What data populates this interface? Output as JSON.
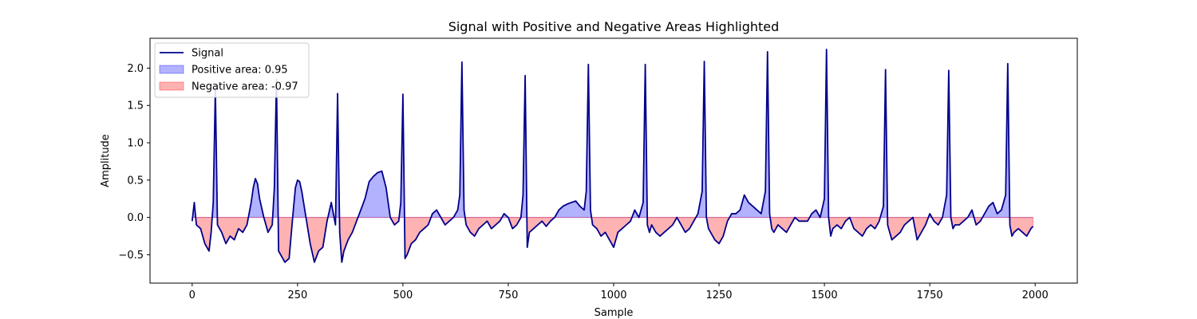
{
  "chart_data": {
    "type": "area",
    "title": "Signal with Positive and Negative Areas Highlighted",
    "xlabel": "Sample",
    "ylabel": "Amplitude",
    "xlim": [
      -100,
      2100
    ],
    "ylim": [
      -0.88,
      2.4
    ],
    "xticks": [
      0,
      250,
      500,
      750,
      1000,
      1250,
      1500,
      1750,
      2000
    ],
    "yticks": [
      -0.5,
      0.0,
      0.5,
      1.0,
      1.5,
      2.0
    ],
    "ytick_labels": [
      "−0.5",
      "0.0",
      "0.5",
      "1.0",
      "1.5",
      "2.0"
    ],
    "grid": false,
    "legend_position": "top-left",
    "series": [
      {
        "name": "Signal",
        "kind": "line",
        "color": "#00008B",
        "x": [
          0,
          5,
          10,
          20,
          30,
          40,
          45,
          50,
          55,
          60,
          70,
          80,
          90,
          100,
          110,
          120,
          130,
          140,
          145,
          150,
          155,
          160,
          170,
          180,
          190,
          195,
          200,
          205,
          210,
          220,
          230,
          240,
          245,
          250,
          255,
          260,
          270,
          280,
          290,
          300,
          310,
          320,
          330,
          340,
          345,
          350,
          355,
          360,
          370,
          380,
          390,
          400,
          410,
          420,
          430,
          440,
          450,
          460,
          470,
          480,
          490,
          495,
          500,
          505,
          510,
          520,
          530,
          540,
          550,
          560,
          570,
          580,
          590,
          600,
          610,
          620,
          630,
          635,
          640,
          645,
          650,
          660,
          670,
          680,
          690,
          700,
          710,
          720,
          730,
          740,
          750,
          760,
          770,
          780,
          785,
          790,
          795,
          800,
          810,
          820,
          830,
          840,
          850,
          860,
          870,
          880,
          890,
          900,
          910,
          920,
          930,
          935,
          940,
          945,
          950,
          960,
          970,
          980,
          990,
          1000,
          1010,
          1020,
          1030,
          1040,
          1050,
          1060,
          1070,
          1075,
          1080,
          1085,
          1090,
          1100,
          1110,
          1120,
          1130,
          1140,
          1150,
          1160,
          1170,
          1180,
          1190,
          1200,
          1210,
          1215,
          1220,
          1225,
          1230,
          1240,
          1250,
          1260,
          1270,
          1280,
          1290,
          1300,
          1310,
          1320,
          1330,
          1340,
          1350,
          1360,
          1365,
          1370,
          1375,
          1380,
          1390,
          1400,
          1410,
          1420,
          1430,
          1440,
          1450,
          1460,
          1470,
          1480,
          1490,
          1500,
          1505,
          1510,
          1515,
          1520,
          1530,
          1540,
          1550,
          1560,
          1570,
          1580,
          1590,
          1600,
          1610,
          1620,
          1630,
          1640,
          1645,
          1650,
          1655,
          1660,
          1670,
          1680,
          1690,
          1700,
          1710,
          1720,
          1730,
          1740,
          1750,
          1760,
          1770,
          1780,
          1790,
          1795,
          1800,
          1805,
          1810,
          1820,
          1830,
          1840,
          1850,
          1860,
          1870,
          1880,
          1890,
          1900,
          1910,
          1920,
          1930,
          1935,
          1940,
          1945,
          1950,
          1960,
          1970,
          1980,
          1990,
          1995
        ],
        "y": [
          -0.05,
          0.2,
          -0.1,
          -0.15,
          -0.35,
          -0.45,
          -0.2,
          0.2,
          1.72,
          -0.1,
          -0.2,
          -0.35,
          -0.25,
          -0.3,
          -0.15,
          -0.2,
          -0.1,
          0.2,
          0.4,
          0.52,
          0.45,
          0.25,
          0.0,
          -0.2,
          -0.1,
          0.4,
          1.85,
          -0.45,
          -0.5,
          -0.6,
          -0.55,
          0.1,
          0.4,
          0.5,
          0.48,
          0.35,
          0.0,
          -0.35,
          -0.6,
          -0.45,
          -0.4,
          -0.05,
          0.2,
          -0.1,
          1.66,
          -0.2,
          -0.6,
          -0.45,
          -0.3,
          -0.2,
          -0.05,
          0.1,
          0.25,
          0.48,
          0.55,
          0.6,
          0.62,
          0.4,
          0.0,
          -0.1,
          -0.05,
          0.2,
          1.65,
          -0.55,
          -0.5,
          -0.35,
          -0.3,
          -0.2,
          -0.15,
          -0.1,
          0.05,
          0.1,
          0.0,
          -0.1,
          -0.05,
          0.0,
          0.1,
          0.3,
          2.08,
          0.1,
          -0.1,
          -0.2,
          -0.25,
          -0.15,
          -0.1,
          -0.05,
          -0.15,
          -0.1,
          -0.05,
          0.05,
          0.0,
          -0.15,
          -0.1,
          0.0,
          0.3,
          1.9,
          -0.4,
          -0.2,
          -0.15,
          -0.1,
          -0.05,
          -0.12,
          -0.05,
          0.0,
          0.1,
          0.15,
          0.18,
          0.2,
          0.22,
          0.15,
          0.1,
          0.35,
          2.05,
          0.1,
          -0.1,
          -0.15,
          -0.25,
          -0.2,
          -0.3,
          -0.4,
          -0.2,
          -0.15,
          -0.1,
          -0.05,
          0.1,
          0.0,
          0.2,
          2.05,
          -0.1,
          -0.2,
          -0.1,
          -0.2,
          -0.25,
          -0.2,
          -0.15,
          -0.1,
          0.0,
          -0.1,
          -0.2,
          -0.15,
          -0.05,
          0.05,
          0.35,
          2.09,
          0.0,
          -0.15,
          -0.2,
          -0.3,
          -0.35,
          -0.25,
          -0.05,
          0.05,
          0.05,
          0.1,
          0.3,
          0.2,
          0.15,
          0.1,
          0.05,
          0.35,
          2.22,
          0.05,
          -0.15,
          -0.2,
          -0.1,
          -0.15,
          -0.2,
          -0.1,
          0.0,
          -0.05,
          -0.05,
          -0.05,
          0.05,
          0.1,
          0.0,
          0.25,
          2.25,
          0.0,
          -0.25,
          -0.15,
          -0.1,
          -0.15,
          -0.05,
          0.0,
          -0.15,
          -0.2,
          -0.25,
          -0.15,
          -0.1,
          -0.15,
          -0.05,
          0.15,
          1.98,
          -0.1,
          -0.2,
          -0.3,
          -0.25,
          -0.2,
          -0.1,
          -0.05,
          0.0,
          -0.3,
          -0.2,
          -0.1,
          0.05,
          -0.05,
          -0.1,
          0.0,
          0.3,
          1.97,
          0.0,
          -0.15,
          -0.1,
          -0.1,
          -0.05,
          0.0,
          0.1,
          -0.1,
          -0.05,
          0.05,
          0.15,
          0.2,
          0.05,
          0.1,
          0.3,
          2.06,
          -0.1,
          -0.25,
          -0.2,
          -0.15,
          -0.2,
          -0.25,
          -0.15,
          -0.12
        ]
      },
      {
        "name": "Positive area: 0.95",
        "kind": "fill",
        "sign": "positive",
        "color": "#0000FF",
        "alpha": 0.3
      },
      {
        "name": "Negative area: -0.97",
        "kind": "fill",
        "sign": "negative",
        "color": "#FF0000",
        "alpha": 0.3
      }
    ]
  }
}
